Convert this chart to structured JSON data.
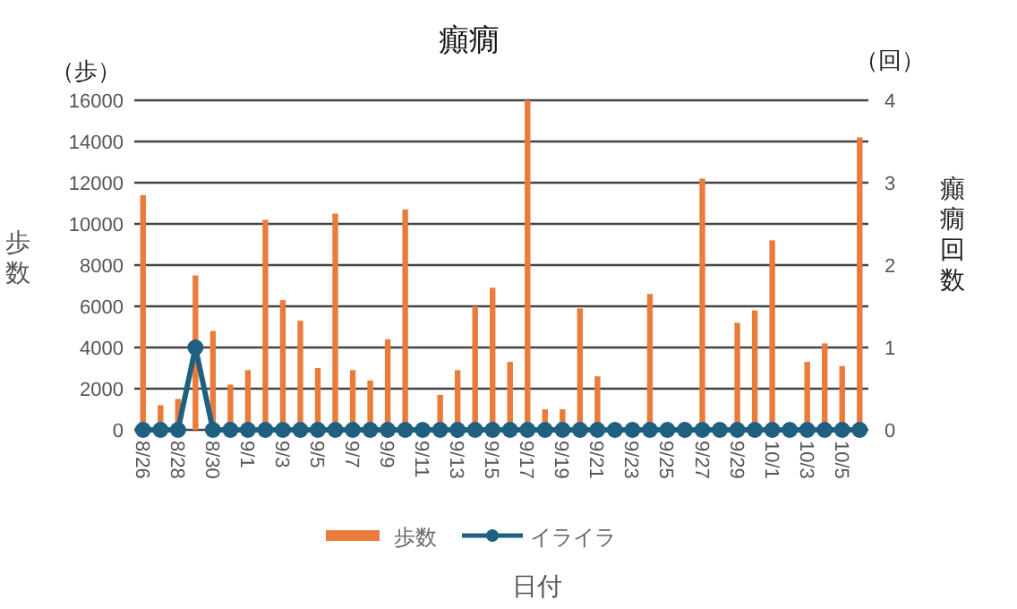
{
  "chart_data": {
    "type": "bar",
    "title": "癲癇",
    "xlabel": "日付",
    "ylabel": "歩数",
    "y2label": "癲癇回数",
    "annotations": [
      "（歩）",
      "（回）"
    ],
    "categories": [
      "8/26",
      null,
      "8/28",
      null,
      "8/30",
      null,
      "9/1",
      null,
      "9/3",
      null,
      "9/5",
      null,
      "9/7",
      null,
      "9/9",
      null,
      "9/11",
      null,
      "9/13",
      null,
      "9/15",
      null,
      "9/17",
      null,
      "9/19",
      null,
      "9/21",
      null,
      "9/23",
      null,
      "9/25",
      null,
      "9/27",
      null,
      "9/29",
      null,
      "10/1",
      null,
      "10/3",
      null,
      "10/5",
      null
    ],
    "series": [
      {
        "name": "歩数",
        "color": "#e97c3c",
        "values": [
          11400,
          1200,
          1500,
          7500,
          4800,
          2200,
          2900,
          10200,
          6300,
          5300,
          3000,
          10500,
          2900,
          2400,
          4400,
          10700,
          0,
          1700,
          2900,
          6000,
          6900,
          3300,
          16000,
          1000,
          1000,
          5900,
          2600,
          100,
          0,
          6600,
          0,
          0,
          12200,
          0,
          5200,
          5800,
          9200,
          0,
          3300,
          4200,
          3100,
          14200
        ]
      },
      {
        "name": "イライラ",
        "type": "line",
        "axis": "y2",
        "color": "#1f5f7f",
        "values": [
          0,
          0,
          0,
          1,
          0,
          0,
          0,
          0,
          0,
          0,
          0,
          0,
          0,
          0,
          0,
          0,
          0,
          0,
          0,
          0,
          0,
          0,
          0,
          0,
          0,
          0,
          0,
          0,
          0,
          0,
          0,
          0,
          0,
          0,
          0,
          0,
          0,
          0,
          0,
          0,
          0,
          0
        ]
      }
    ],
    "marker": "circle",
    "ylim": [
      0,
      16000
    ],
    "yticks": [
      0,
      2000,
      4000,
      6000,
      8000,
      10000,
      12000,
      14000,
      16000
    ],
    "y2lim": [
      0,
      4
    ],
    "y2ticks": [
      0,
      1,
      2,
      3,
      4
    ],
    "grid": "y",
    "legend": "bottom"
  }
}
